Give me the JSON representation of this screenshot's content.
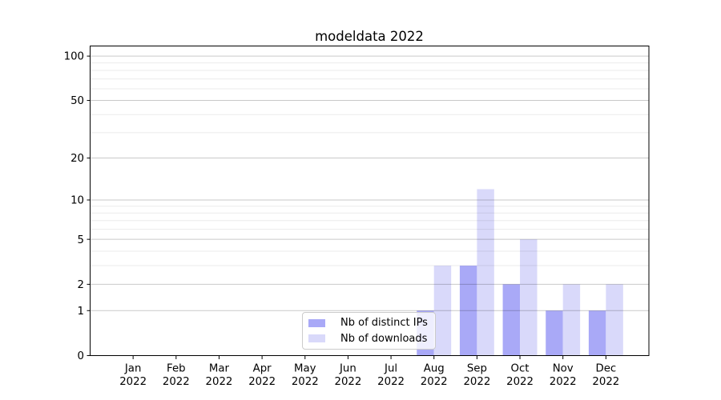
{
  "chart_data": {
    "type": "bar",
    "title": "modeldata 2022",
    "x": {
      "categories": [
        "Jan",
        "Feb",
        "Mar",
        "Apr",
        "May",
        "Jun",
        "Jul",
        "Aug",
        "Sep",
        "Oct",
        "Nov",
        "Dec"
      ],
      "year_label": "2022"
    },
    "series": [
      {
        "name": "Nb of distinct IPs",
        "color": "#a9a9f7",
        "values": [
          0,
          0,
          0,
          0,
          0,
          0,
          0,
          1,
          3,
          2,
          1,
          1
        ]
      },
      {
        "name": "Nb of downloads",
        "color": "#d9d9fa",
        "values": [
          0,
          0,
          0,
          0,
          0,
          0,
          0,
          3,
          12,
          5,
          2,
          2
        ]
      }
    ],
    "yscale": "log1p",
    "ylim": [
      0,
      117
    ],
    "yticks_major": [
      0,
      1,
      2,
      5,
      10,
      20,
      50,
      100
    ],
    "yticks_minor": [
      3,
      4,
      6,
      7,
      8,
      9,
      30,
      40,
      60,
      70,
      80,
      90
    ],
    "grid": "horizontal",
    "legend_position": "lower center"
  }
}
